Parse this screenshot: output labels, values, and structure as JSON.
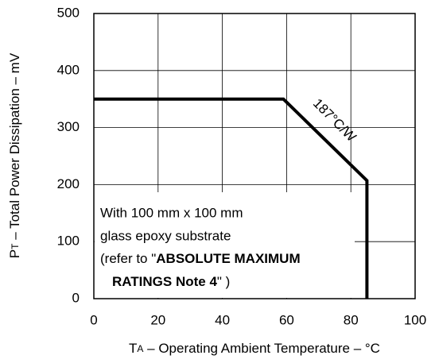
{
  "chart_data": {
    "type": "line",
    "x_label": {
      "main": "T",
      "sub": "A",
      "rest": " – Operating Ambient Temperature – °C"
    },
    "y_label": {
      "main": "P",
      "sub": "T",
      "rest": " – Total Power Dissipation – mV"
    },
    "x": [
      0,
      59,
      85,
      85
    ],
    "series": [
      {
        "color": "#000000",
        "values": [
          350,
          350,
          207,
          0
        ]
      }
    ],
    "xlim": [
      0,
      100
    ],
    "xticks": [
      0,
      20,
      40,
      60,
      80,
      100
    ],
    "ylim": [
      0,
      500
    ],
    "yticks": [
      0,
      100,
      200,
      300,
      400,
      500
    ],
    "grid": true,
    "slope_label": "187°C/W",
    "annotation": [
      "With 100 mm x 100 mm",
      "glass epoxy substrate",
      "(refer to \"",
      "ABSOLUTE MAXIMUM",
      "RATINGS Note 4",
      "\" )"
    ]
  }
}
